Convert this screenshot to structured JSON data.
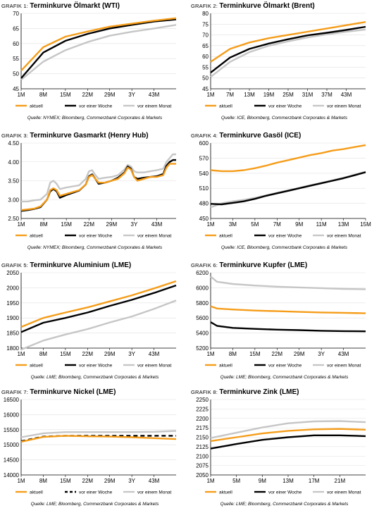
{
  "colors": {
    "aktuell": "#f59d1a",
    "vor_woche": "#000000",
    "vor_monat": "#c6c6c6",
    "grid": "#e0e0e0"
  },
  "chart_data": [
    {
      "type": "line",
      "label": "GRAFIK 1:",
      "title": "Terminkurve Ölmarkt (WTI)",
      "source": "Quelle: NYMEX; Bloomberg, Commerzbank Corporates & Markets",
      "ylim": [
        45,
        70
      ],
      "yticks": [
        "45",
        "50",
        "55",
        "60",
        "65",
        "70"
      ],
      "x": [
        1,
        8,
        15,
        22,
        29,
        36,
        43,
        50
      ],
      "xticklabels": [
        "1M",
        "8M",
        "15M",
        "22M",
        "29M",
        "3Y",
        "43M"
      ],
      "xtickvalues": [
        1,
        8,
        15,
        22,
        29,
        36,
        43
      ],
      "legend": "bottom",
      "series": [
        {
          "name": "aktuell",
          "style": "solid",
          "values": [
            51,
            58.8,
            62.3,
            64,
            65.6,
            66.6,
            67.6,
            68.4
          ]
        },
        {
          "name": "vor einer Woche",
          "style": "solid",
          "values": [
            48.5,
            57,
            60.9,
            63.2,
            65,
            66.2,
            67.3,
            68
          ]
        },
        {
          "name": "vor einem Monat",
          "style": "solid",
          "values": [
            48,
            54,
            57.8,
            60.5,
            62.6,
            63.9,
            65,
            66.2
          ]
        }
      ]
    },
    {
      "type": "line",
      "label": "GRAFIK 2:",
      "title": "Terminkurve Ölmarkt (Brent)",
      "source": "Quelle: ICE, Bloomberg, Commerzbank Corporates & Markets",
      "ylim": [
        45,
        80
      ],
      "yticks": [
        "45",
        "50",
        "55",
        "60",
        "65",
        "70",
        "75",
        "80"
      ],
      "x": [
        1,
        7,
        13,
        19,
        25,
        31,
        37,
        43,
        49
      ],
      "xticklabels": [
        "1M",
        "7M",
        "13M",
        "19M",
        "25M",
        "31M",
        "37M",
        "43M"
      ],
      "xtickvalues": [
        1,
        7,
        13,
        19,
        25,
        31,
        37,
        43
      ],
      "legend": "bottom",
      "series": [
        {
          "name": "aktuell",
          "style": "solid",
          "values": [
            57.5,
            63.5,
            66.5,
            68.5,
            70,
            71.5,
            73,
            74.5,
            76
          ]
        },
        {
          "name": "vor einer Woche",
          "style": "solid",
          "values": [
            52.5,
            59.5,
            63.5,
            66,
            68,
            69.8,
            71,
            72.3,
            73.8
          ]
        },
        {
          "name": "vor einem Monat",
          "style": "solid",
          "values": [
            50.5,
            57.5,
            62,
            65,
            67,
            68.8,
            70.3,
            71.5,
            72.5
          ]
        }
      ]
    },
    {
      "type": "line",
      "label": "GRAFIK 3:",
      "title": "Terminkurve Gasmarkt (Henry Hub)",
      "source": "Quelle: NYMEX; Bloomberg, Commerzbank Corporates & Markets",
      "ylim": [
        2.5,
        4.5
      ],
      "yticks": [
        "2.50",
        "3.00",
        "3.50",
        "4.00",
        "4.50"
      ],
      "x": [
        1,
        3,
        5,
        7,
        9,
        10,
        11,
        12,
        13,
        15,
        17,
        19,
        21,
        22,
        23,
        24,
        25,
        27,
        29,
        31,
        33,
        34,
        35,
        36,
        37,
        39,
        41,
        43,
        45,
        46,
        47,
        48,
        49
      ],
      "xticklabels": [
        "1M",
        "8M",
        "15M",
        "22M",
        "29M",
        "3Y",
        "43M"
      ],
      "xtickvalues": [
        1,
        8,
        15,
        22,
        29,
        36,
        43
      ],
      "legend": "bottom",
      "series": [
        {
          "name": "aktuell",
          "style": "solid",
          "values": [
            2.72,
            2.74,
            2.76,
            2.82,
            3.0,
            3.25,
            3.3,
            3.25,
            3.1,
            3.15,
            3.2,
            3.25,
            3.4,
            3.6,
            3.65,
            3.55,
            3.45,
            3.45,
            3.5,
            3.55,
            3.7,
            3.85,
            3.8,
            3.6,
            3.5,
            3.55,
            3.6,
            3.6,
            3.65,
            3.85,
            3.95,
            3.95,
            3.95
          ]
        },
        {
          "name": "vor einer Woche",
          "style": "solid",
          "values": [
            2.7,
            2.72,
            2.75,
            2.8,
            3.0,
            3.22,
            3.28,
            3.22,
            3.05,
            3.12,
            3.18,
            3.24,
            3.4,
            3.62,
            3.67,
            3.55,
            3.42,
            3.45,
            3.5,
            3.58,
            3.72,
            3.88,
            3.82,
            3.6,
            3.55,
            3.58,
            3.6,
            3.62,
            3.68,
            3.9,
            4.0,
            4.05,
            4.05
          ]
        },
        {
          "name": "vor einem Monat",
          "style": "solid",
          "values": [
            2.95,
            2.95,
            2.98,
            3.0,
            3.15,
            3.45,
            3.5,
            3.42,
            3.28,
            3.32,
            3.35,
            3.38,
            3.55,
            3.75,
            3.78,
            3.65,
            3.55,
            3.58,
            3.6,
            3.65,
            3.8,
            3.92,
            3.88,
            3.75,
            3.72,
            3.72,
            3.75,
            3.78,
            3.82,
            4.0,
            4.1,
            4.2,
            4.2
          ]
        }
      ]
    },
    {
      "type": "line",
      "label": "GRAFIK 4:",
      "title": "Terminkurve Gasöl (ICE)",
      "source": "Quelle: ICE, Bloomberg, Commerzbank Corporates & Markets",
      "ylim": [
        450,
        600
      ],
      "yticks": [
        "450",
        "480",
        "510",
        "540",
        "570",
        "600"
      ],
      "x": [
        1,
        2,
        3,
        4,
        5,
        6,
        7,
        8,
        9,
        10,
        11,
        12,
        13,
        14,
        15
      ],
      "xticklabels": [
        "1M",
        "3M",
        "5M",
        "7M",
        "9M",
        "11M",
        "13M",
        "15M"
      ],
      "xtickvalues": [
        1,
        3,
        5,
        7,
        9,
        11,
        13,
        15
      ],
      "legend": "bottom",
      "series": [
        {
          "name": "aktuell",
          "style": "solid",
          "values": [
            546,
            544,
            544,
            546,
            550,
            555,
            561,
            566,
            571,
            576,
            580,
            585,
            588,
            592,
            596
          ]
        },
        {
          "name": "vor einer Woche",
          "style": "solid",
          "values": [
            479,
            478,
            481,
            484,
            489,
            495,
            500,
            505,
            510,
            515,
            520,
            525,
            530,
            536,
            542
          ]
        },
        {
          "name": "vor einem Monat",
          "style": "solid",
          "values": [
            472,
            480,
            484,
            487,
            491,
            496,
            501,
            506,
            511,
            516,
            521,
            526,
            531,
            537,
            543
          ]
        }
      ]
    },
    {
      "type": "line",
      "label": "GRAFIK 5:",
      "title": "Terminkurve Aluminium (LME)",
      "source": "Quelle: LME; Bloomberg, Commerzbank Corporates & Markets",
      "ylim": [
        1800,
        2050
      ],
      "yticks": [
        "1800",
        "1850",
        "1900",
        "1950",
        "2000",
        "2050"
      ],
      "x": [
        1,
        8,
        15,
        22,
        29,
        36,
        43,
        50
      ],
      "xticklabels": [
        "1M",
        "8M",
        "15M",
        "22M",
        "29M",
        "3Y",
        "43M"
      ],
      "xtickvalues": [
        1,
        8,
        15,
        22,
        29,
        36,
        43
      ],
      "legend": "bottom",
      "series": [
        {
          "name": "aktuell",
          "style": "solid",
          "values": [
            1870,
            1900,
            1918,
            1935,
            1955,
            1975,
            1998,
            2022
          ]
        },
        {
          "name": "vor einer Woche",
          "style": "solid",
          "values": [
            1853,
            1884,
            1900,
            1918,
            1940,
            1960,
            1983,
            2008
          ]
        },
        {
          "name": "vor einem Monat",
          "style": "solid",
          "values": [
            1795,
            1825,
            1845,
            1863,
            1885,
            1905,
            1930,
            1958
          ]
        }
      ]
    },
    {
      "type": "line",
      "label": "GRAFIK 6:",
      "title": "Terminkurve Kupfer (LME)",
      "source": "Quelle: LME; Bloomberg, Commerzbank Corporates & Markets",
      "ylim": [
        5200,
        6200
      ],
      "yticks": [
        "5200",
        "5400",
        "5600",
        "5800",
        "6000",
        "6200"
      ],
      "x": [
        1,
        3,
        8,
        15,
        22,
        29,
        36,
        43,
        50
      ],
      "xticklabels": [
        "1M",
        "8M",
        "15M",
        "22M",
        "29M",
        "3Y",
        "43M"
      ],
      "xtickvalues": [
        1,
        8,
        15,
        22,
        29,
        36,
        43
      ],
      "legend": "bottom",
      "series": [
        {
          "name": "aktuell",
          "style": "solid",
          "values": [
            5755,
            5725,
            5712,
            5698,
            5690,
            5680,
            5673,
            5668,
            5662
          ]
        },
        {
          "name": "vor einer Woche",
          "style": "solid",
          "values": [
            5545,
            5495,
            5468,
            5455,
            5445,
            5438,
            5430,
            5425,
            5422
          ]
        },
        {
          "name": "vor einem Monat",
          "style": "solid",
          "values": [
            6150,
            6080,
            6050,
            6030,
            6015,
            6005,
            5995,
            5985,
            5980
          ]
        }
      ]
    },
    {
      "type": "line",
      "label": "GRAFIK 7:",
      "title": "Terminkurve Nickel (LME)",
      "source": "Quelle: LME; Bloomberg, Commerzbank Corporates & Markets",
      "ylim": [
        14000,
        16500
      ],
      "yticks": [
        "14000",
        "14500",
        "15000",
        "15500",
        "16000",
        "16500"
      ],
      "x": [
        1,
        8,
        15,
        22,
        29,
        36,
        43,
        50
      ],
      "xticklabels": [
        "1M",
        "8M",
        "15M",
        "22M",
        "29M",
        "3Y",
        "43M"
      ],
      "xtickvalues": [
        1,
        8,
        15,
        22,
        29,
        36,
        43
      ],
      "legend": "bottom",
      "series": [
        {
          "name": "aktuell",
          "style": "solid",
          "values": [
            15100,
            15260,
            15300,
            15280,
            15270,
            15250,
            15220,
            15190
          ]
        },
        {
          "name": "vor einer Woche",
          "style": "dashed",
          "values": [
            15120,
            15270,
            15300,
            15300,
            15300,
            15300,
            15300,
            15300
          ]
        },
        {
          "name": "vor einem Monat",
          "style": "solid",
          "values": [
            15250,
            15380,
            15420,
            15420,
            15420,
            15420,
            15430,
            15460
          ]
        }
      ]
    },
    {
      "type": "line",
      "label": "GRAFIK 8:",
      "title": "Terminkurve Zink (LME)",
      "source": "Quelle: LME; Bloomberg, Commerzbank Corporates & Markets",
      "ylim": [
        2050,
        2250
      ],
      "yticks": [
        "2050",
        "2075",
        "2100",
        "2125",
        "2150",
        "2175",
        "2200",
        "2225",
        "2250"
      ],
      "x": [
        1,
        5,
        9,
        13,
        17,
        21,
        25
      ],
      "xticklabels": [
        "1M",
        "5M",
        "9M",
        "13M",
        "17M",
        "21M"
      ],
      "xtickvalues": [
        1,
        5,
        9,
        13,
        17,
        21
      ],
      "legend": "bottom",
      "series": [
        {
          "name": "aktuell",
          "style": "solid",
          "values": [
            2140,
            2150,
            2160,
            2167,
            2171,
            2172,
            2170
          ]
        },
        {
          "name": "vor einer Woche",
          "style": "solid",
          "values": [
            2120,
            2132,
            2143,
            2150,
            2155,
            2155,
            2153
          ]
        },
        {
          "name": "vor einem Monat",
          "style": "solid",
          "values": [
            2148,
            2162,
            2176,
            2187,
            2192,
            2193,
            2190
          ]
        }
      ]
    }
  ]
}
